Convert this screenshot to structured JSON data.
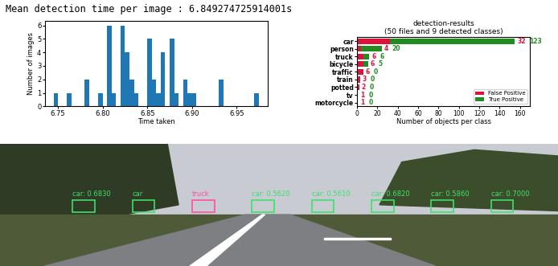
{
  "chart_data": [
    {
      "type": "histogram",
      "title": "Mean detection time per image : 6.849274725914001s",
      "x_label": "Time taken",
      "y_label": "Number of images",
      "bins": [
        6.74,
        6.745,
        6.75,
        6.755,
        6.76,
        6.765,
        6.77,
        6.775,
        6.78,
        6.785,
        6.79,
        6.795,
        6.8,
        6.805,
        6.81,
        6.815,
        6.82,
        6.825,
        6.83,
        6.835,
        6.84,
        6.845,
        6.85,
        6.855,
        6.86,
        6.865,
        6.87,
        6.875,
        6.88,
        6.885,
        6.89,
        6.895,
        6.9,
        6.905,
        6.91,
        6.915,
        6.92,
        6.925,
        6.93,
        6.935,
        6.94,
        6.945,
        6.95,
        6.955,
        6.96,
        6.965,
        6.97,
        6.975,
        6.98
      ],
      "counts": [
        0,
        1,
        0,
        0,
        1,
        0,
        0,
        0,
        2,
        0,
        0,
        1,
        0,
        6,
        1,
        0,
        6,
        4,
        2,
        1,
        0,
        0,
        5,
        2,
        1,
        4,
        0,
        5,
        1,
        0,
        2,
        1,
        1,
        0,
        0,
        0,
        0,
        0,
        2,
        0,
        0,
        0,
        0,
        0,
        0,
        0,
        1,
        0
      ],
      "color": "#1f77b4",
      "xlim": [
        6.735,
        6.985
      ],
      "xticks": [
        6.75,
        {
          "value": 6.8,
          "label": "6.80"
        },
        6.85,
        {
          "value": 6.9,
          "label": "6.90"
        },
        6.95
      ],
      "ylim": [
        0,
        6.3
      ],
      "yticks": [
        0,
        1,
        2,
        3,
        4,
        5,
        6
      ]
    },
    {
      "type": "bar",
      "orientation": "horizontal",
      "stacked": true,
      "title": "detection-results\n(50 files and 9 detected classes)",
      "x_label": "Number of objects per class",
      "categories": [
        "car",
        "person",
        "truck",
        "bicycle",
        "traffic",
        "train",
        "potted",
        "tv",
        "motorcycle"
      ],
      "series": [
        {
          "name": "False Positive",
          "color": "crimson",
          "values": [
            32,
            4,
            6,
            6,
            6,
            3,
            2,
            1,
            1
          ]
        },
        {
          "name": "True Positive",
          "color": "forestgreen",
          "values": [
            123,
            20,
            6,
            5,
            0,
            0,
            0,
            0,
            0
          ]
        }
      ],
      "xlim": [
        0,
        170
      ],
      "xticks": [
        0,
        20,
        40,
        60,
        80,
        100,
        120,
        140,
        160
      ],
      "data_labels": true,
      "legend": "lower right"
    },
    {
      "type": "image",
      "labels": [
        "car: 0.6830",
        "car",
        "truck",
        "car: 0.5620",
        "car: 0.5610",
        "car: 0.6820",
        "car: 0.5860",
        "car: 0.7000"
      ],
      "colors": [
        "#3ee06a",
        "#3ee06a",
        "#ff4fa0",
        "#3ee06a",
        "#3ee06a",
        "#3ee06a",
        "#3ee06a",
        "#3ee06a"
      ]
    }
  ]
}
